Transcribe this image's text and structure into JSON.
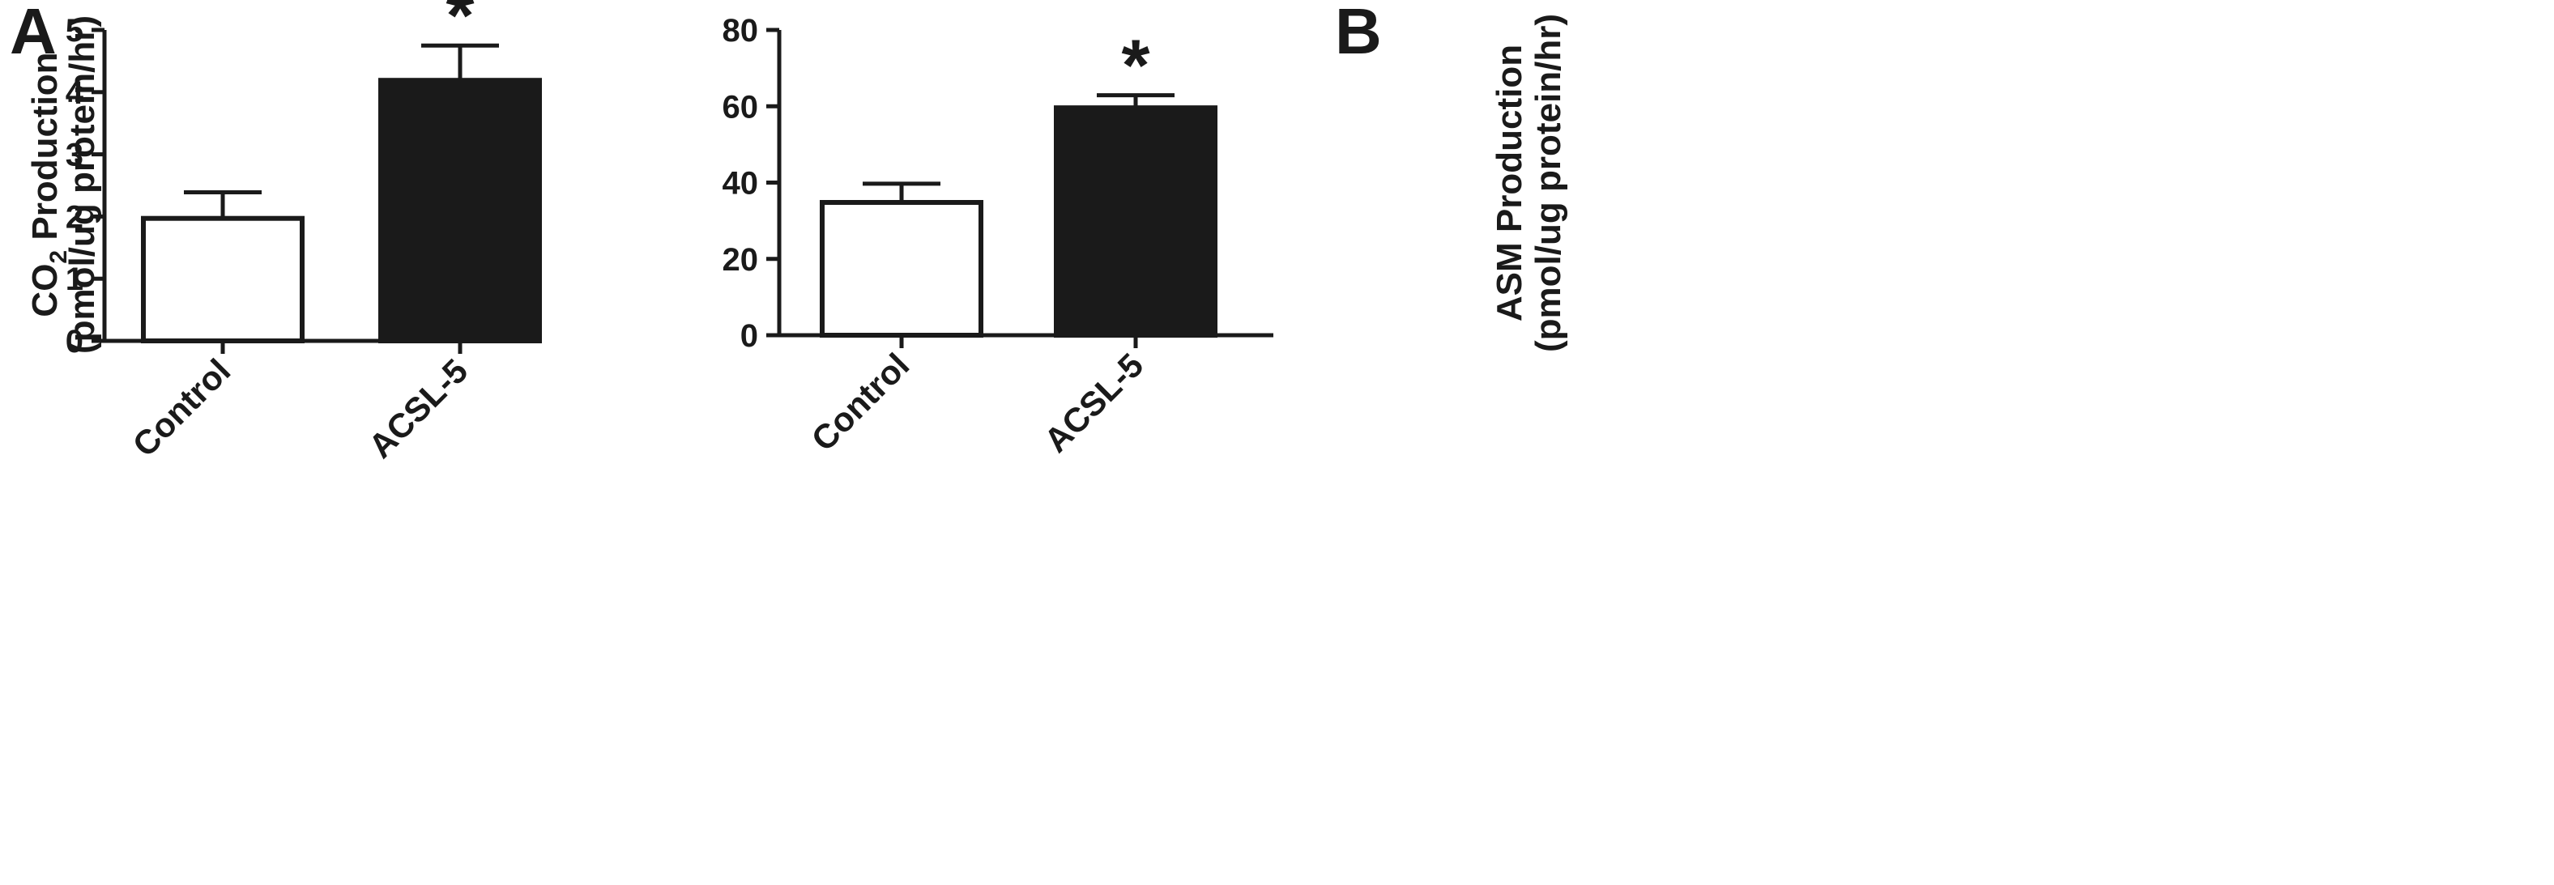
{
  "chart_data": [
    {
      "panel": "A",
      "type": "bar",
      "ylabel_lines": [
        "CO2 Production",
        "(pmol/ug protein/hr)"
      ],
      "ylabel_main": "CO",
      "ylabel_sub": "2",
      "ylabel_rest": " Production",
      "ylabel_units": "(pmol/ug protein/hr)",
      "ylim": [
        0,
        5
      ],
      "yticks": [
        "0",
        "1",
        "2",
        "3",
        "4",
        "5"
      ],
      "categories": [
        "Control",
        "ACSL-5"
      ],
      "values": [
        1.97,
        4.19
      ],
      "errors": [
        0.42,
        0.56
      ],
      "significance": [
        "",
        "*"
      ],
      "bar_colors": [
        "#ffffff",
        "#1a1a1a"
      ],
      "grid": false
    },
    {
      "panel": "B",
      "type": "bar",
      "ylabel_lines": [
        "ASM Production",
        "(pmol/ug protein/hr)"
      ],
      "ylabel_units": "(pmol/ug protein/hr)",
      "ylim": [
        0,
        80
      ],
      "yticks": [
        "0",
        "20",
        "40",
        "60",
        "80"
      ],
      "categories": [
        "Control",
        "ACSL-5"
      ],
      "values": [
        34.8,
        59.6
      ],
      "errors": [
        4.9,
        3.3
      ],
      "significance": [
        "",
        "*"
      ],
      "bar_colors": [
        "#ffffff",
        "#1a1a1a"
      ],
      "grid": false
    }
  ]
}
